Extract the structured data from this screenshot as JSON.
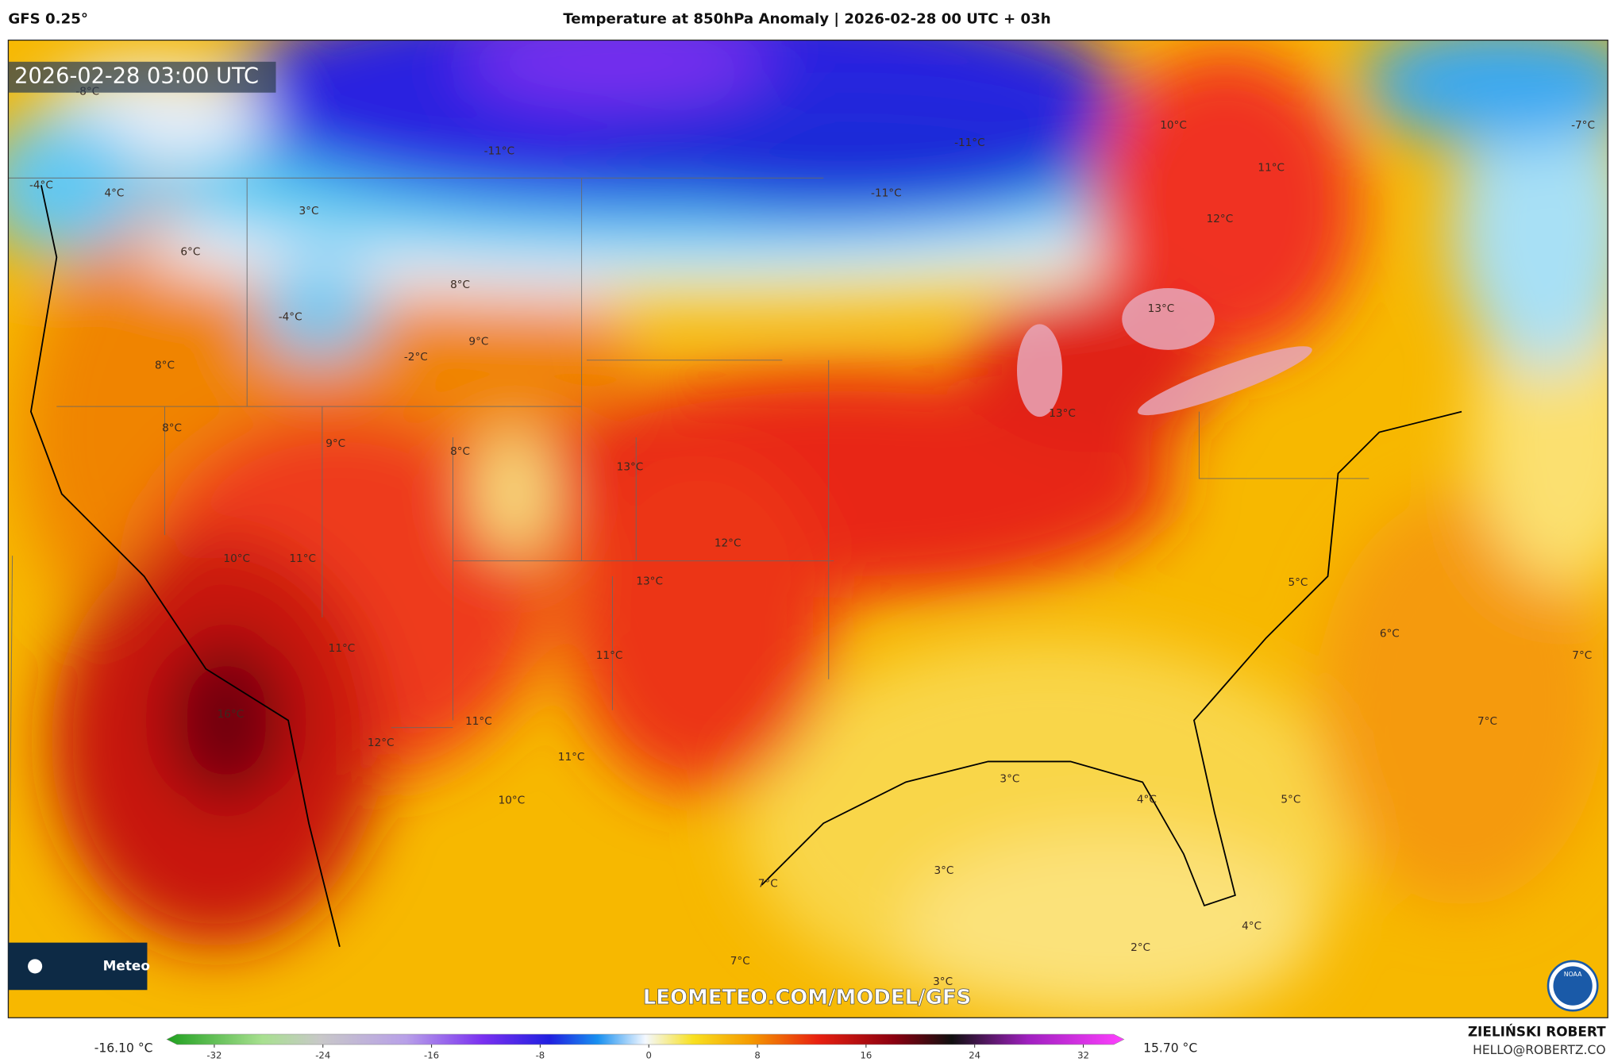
{
  "header": {
    "model": "GFS 0.25°",
    "title": "Temperature at 850hPa Anomaly | 2026-02-28 00 UTC + 03h"
  },
  "map": {
    "timestamp": "2026-02-28 03:00 UTC",
    "labels": [
      "-8°C",
      "-11°C",
      "-11°C",
      "-11°C",
      "10°C",
      "11°C",
      "12°C",
      "-7°C",
      "-4°C",
      "4°C",
      "3°C",
      "6°C",
      "8°C",
      "-4°C",
      "9°C",
      "-2°C",
      "13°C",
      "8°C",
      "13°C",
      "8°C",
      "9°C",
      "8°C",
      "13°C",
      "12°C",
      "10°C",
      "11°C",
      "13°C",
      "5°C",
      "6°C",
      "7°C",
      "11°C",
      "11°C",
      "16°C",
      "7°C",
      "11°C",
      "12°C",
      "11°C",
      "3°C",
      "10°C",
      "4°C",
      "5°C",
      "3°C",
      "7°C",
      "2°C",
      "4°C",
      "7°C",
      "3°C"
    ],
    "watermark": "LEOMETEO.COM/MODEL/GFS",
    "logo_text": "Meteo",
    "noaa": "NOAA"
  },
  "colorbar": {
    "min_label": "-16.10 °C",
    "max_label": "15.70 °C",
    "lim": [
      -35.5,
      35
    ],
    "ticks": [
      -32,
      -24,
      -16,
      -8,
      0,
      8,
      16,
      24,
      32
    ]
  },
  "credits": {
    "author": "ZIELIŃSKI ROBERT",
    "email": "HELLO@ROBERTZ.CO"
  }
}
